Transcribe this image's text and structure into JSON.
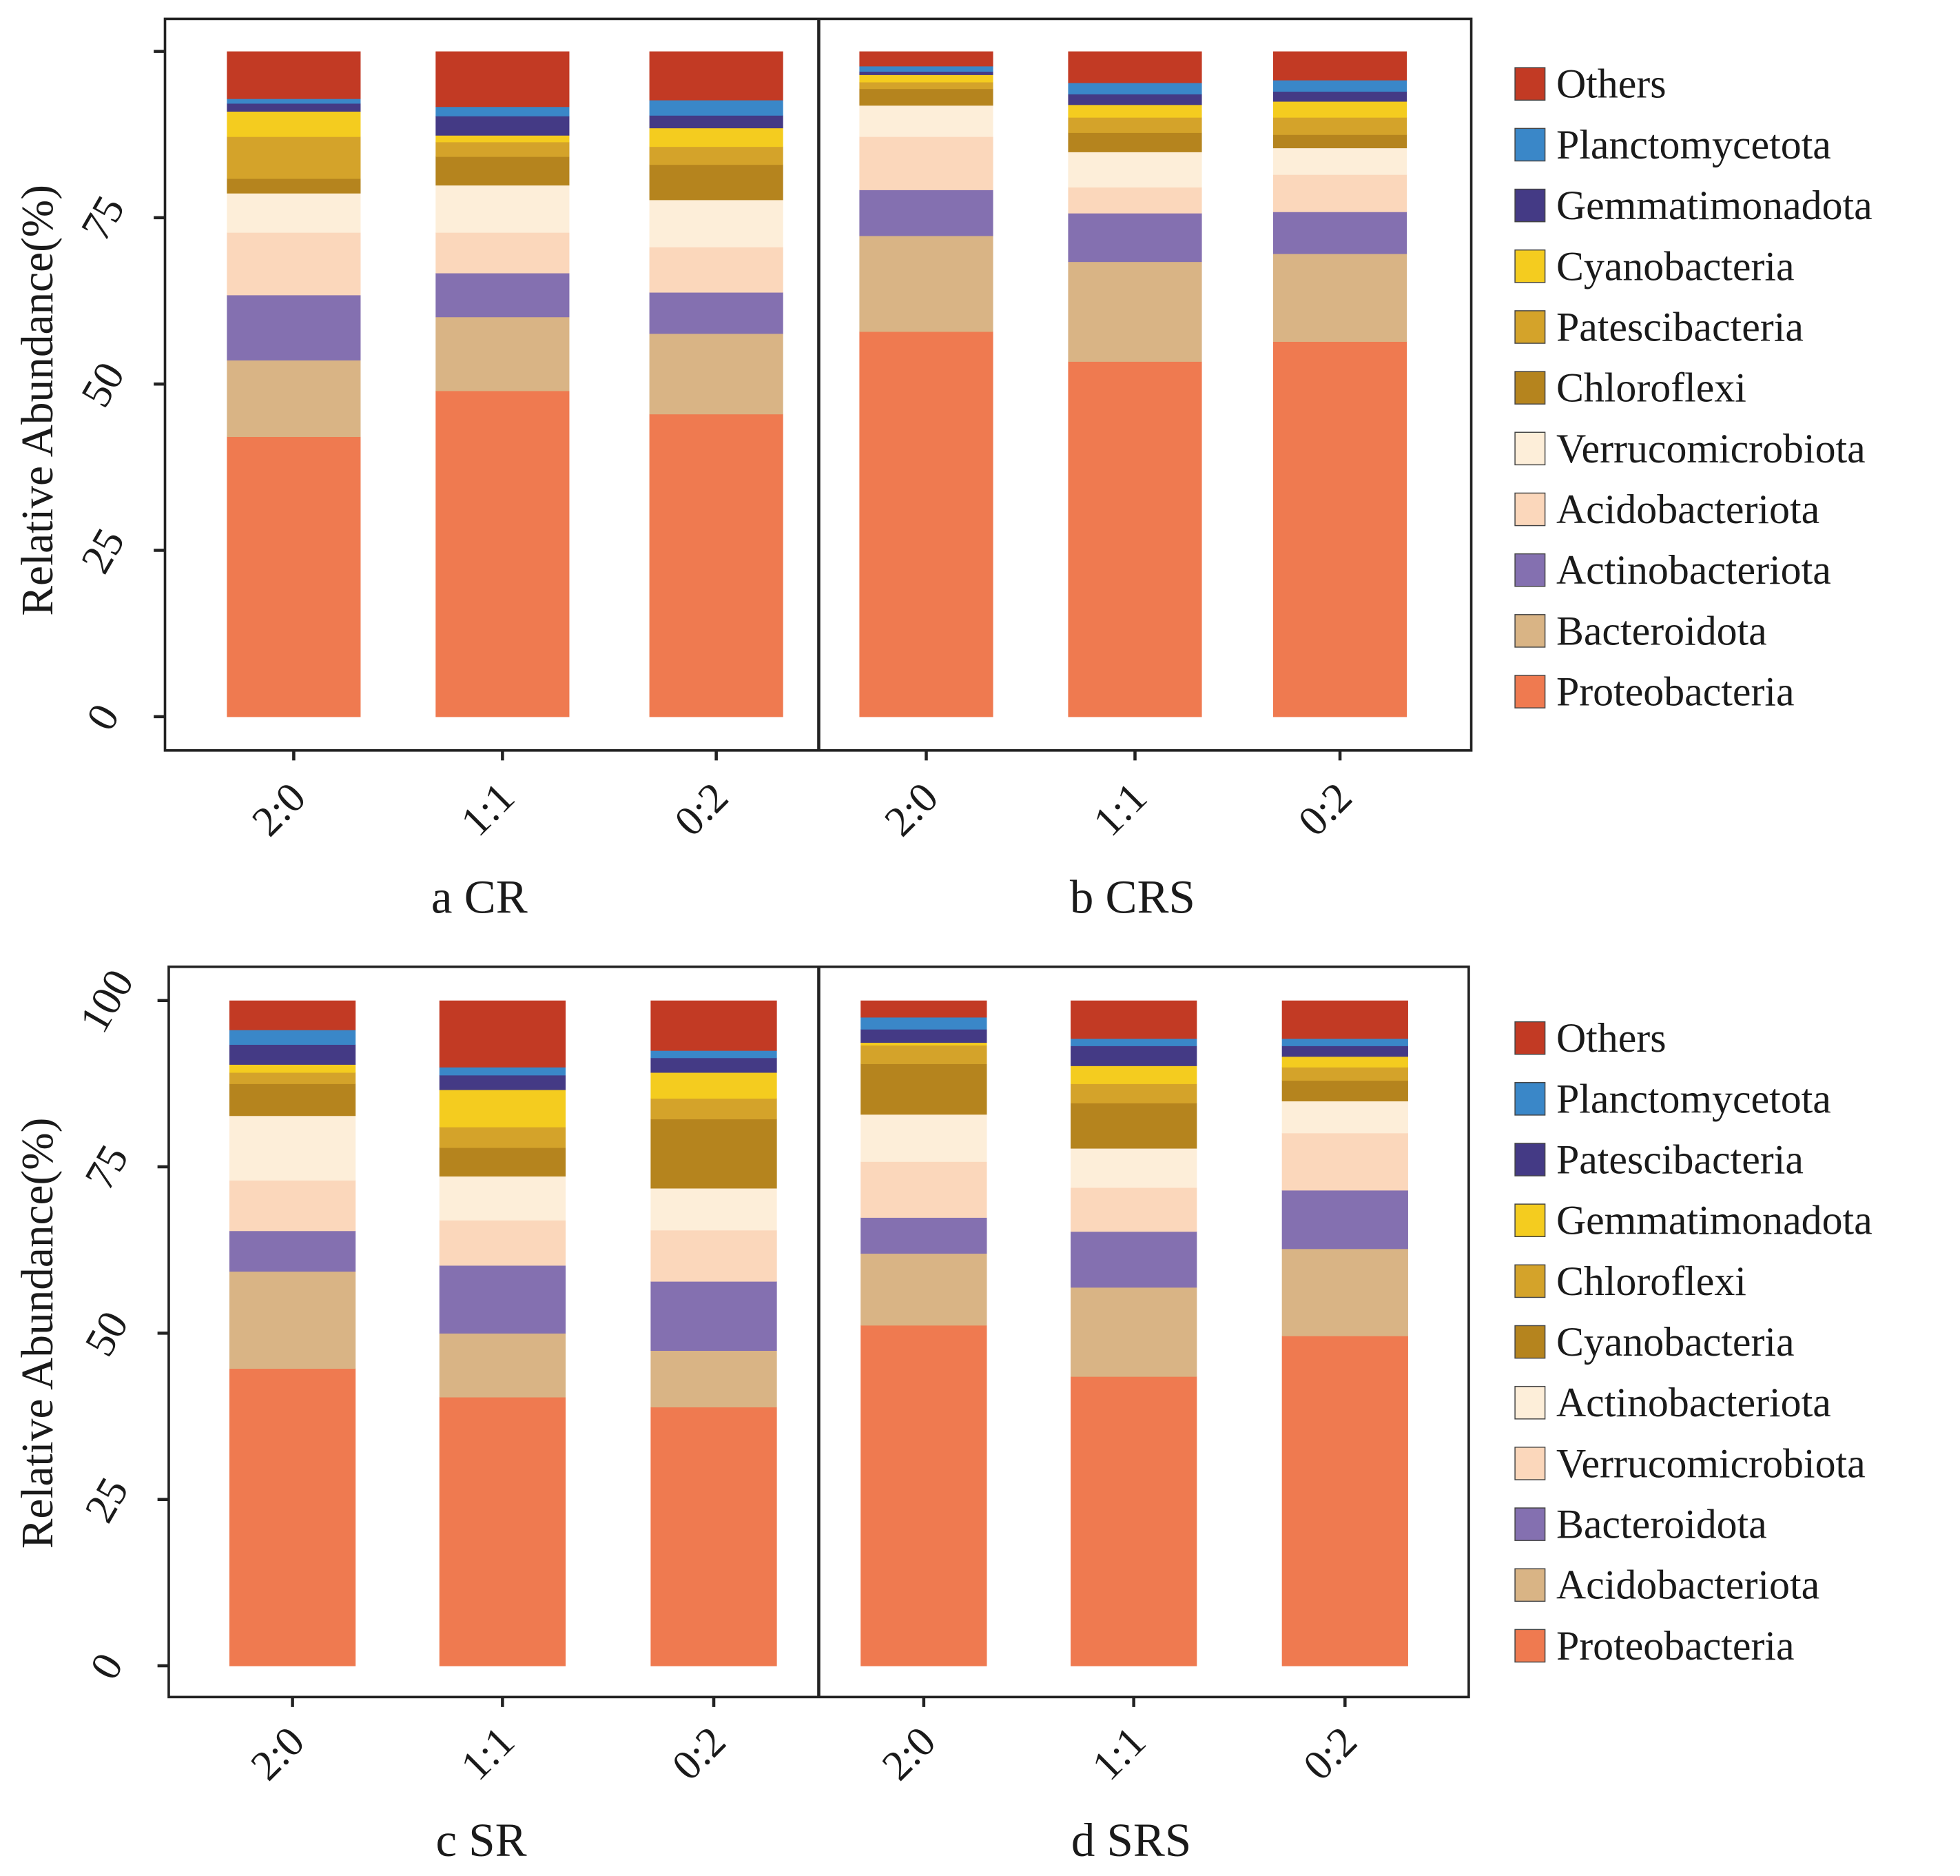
{
  "chart_data": [
    {
      "type": "bar",
      "stacked": true,
      "panel": "a CR",
      "ylabel": "Relative Abundance(%)",
      "ylim": [
        0,
        100
      ],
      "yticks": [
        "0",
        "25",
        "50",
        "75",
        ""
      ],
      "ytick_values": [
        0,
        25,
        50,
        75,
        100
      ],
      "categories": [
        "2:0",
        "1:1",
        "0:2"
      ],
      "grid": false,
      "legend_position": "right",
      "series": [
        {
          "name": "Proteobacteria",
          "color": "#ef7a50",
          "values": [
            42.1,
            49.0,
            45.5
          ]
        },
        {
          "name": "Bacteroidota",
          "color": "#d9b485",
          "values": [
            11.5,
            11.1,
            12.1
          ]
        },
        {
          "name": "Actinobacteriota",
          "color": "#8470b0",
          "values": [
            9.8,
            6.6,
            6.2
          ]
        },
        {
          "name": "Acidobacteriota",
          "color": "#fbd7bb",
          "values": [
            9.4,
            6.1,
            6.8
          ]
        },
        {
          "name": "Verrucomicrobiota",
          "color": "#fdeed9",
          "values": [
            5.9,
            7.1,
            7.1
          ]
        },
        {
          "name": "Chloroflexi",
          "color": "#b5841e",
          "values": [
            2.2,
            4.3,
            5.3
          ]
        },
        {
          "name": "Patescibacteria",
          "color": "#d4a32a",
          "values": [
            6.3,
            2.2,
            2.7
          ]
        },
        {
          "name": "Cyanobacteria",
          "color": "#f4cc1f",
          "values": [
            3.8,
            1.0,
            2.8
          ]
        },
        {
          "name": "Gemmatimonadota",
          "color": "#443a85",
          "values": [
            1.2,
            2.9,
            1.9
          ]
        },
        {
          "name": "Planctomycetota",
          "color": "#3a87c8",
          "values": [
            0.7,
            1.4,
            2.3
          ]
        },
        {
          "name": "Others",
          "color": "#c23a24",
          "values": [
            7.1,
            8.3,
            7.3
          ]
        }
      ]
    },
    {
      "type": "bar",
      "stacked": true,
      "panel": "b CRS",
      "ylim": [
        0,
        100
      ],
      "categories": [
        "2:0",
        "1:1",
        "0:2"
      ],
      "series": [
        {
          "name": "Proteobacteria",
          "color": "#ef7a50",
          "values": [
            57.9,
            53.4,
            56.4
          ]
        },
        {
          "name": "Bacteroidota",
          "color": "#d9b485",
          "values": [
            14.4,
            15.0,
            13.2
          ]
        },
        {
          "name": "Actinobacteriota",
          "color": "#8470b0",
          "values": [
            6.9,
            7.3,
            6.3
          ]
        },
        {
          "name": "Acidobacteriota",
          "color": "#fbd7bb",
          "values": [
            8.0,
            3.9,
            5.6
          ]
        },
        {
          "name": "Verrucomicrobiota",
          "color": "#fdeed9",
          "values": [
            4.7,
            5.3,
            4.0
          ]
        },
        {
          "name": "Chloroflexi",
          "color": "#b5841e",
          "values": [
            2.5,
            2.9,
            2.0
          ]
        },
        {
          "name": "Patescibacteria",
          "color": "#d4a32a",
          "values": [
            1.0,
            2.3,
            2.6
          ]
        },
        {
          "name": "Cyanobacteria",
          "color": "#f4cc1f",
          "values": [
            1.1,
            1.9,
            2.4
          ]
        },
        {
          "name": "Gemmatimonadota",
          "color": "#443a85",
          "values": [
            0.5,
            1.6,
            1.5
          ]
        },
        {
          "name": "Planctomycetota",
          "color": "#3a87c8",
          "values": [
            0.8,
            1.7,
            1.7
          ]
        },
        {
          "name": "Others",
          "color": "#c23a24",
          "values": [
            2.2,
            4.7,
            4.3
          ]
        }
      ]
    },
    {
      "type": "bar",
      "stacked": true,
      "panel": "c SR",
      "ylabel": "Relative Abundance(%)",
      "ylim": [
        0,
        100
      ],
      "yticks": [
        "0",
        "25",
        "50",
        "75",
        "100"
      ],
      "ytick_values": [
        0,
        25,
        50,
        75,
        100
      ],
      "categories": [
        "2:0",
        "1:1",
        "0:2"
      ],
      "grid": false,
      "legend_position": "right",
      "series": [
        {
          "name": "Proteobacteria",
          "color": "#ef7a50",
          "values": [
            44.7,
            40.4,
            38.9
          ]
        },
        {
          "name": "Acidobacteriota",
          "color": "#d9b485",
          "values": [
            14.6,
            9.6,
            8.5
          ]
        },
        {
          "name": "Bacteroidota",
          "color": "#8470b0",
          "values": [
            6.1,
            10.2,
            10.4
          ]
        },
        {
          "name": "Verrucomicrobiota",
          "color": "#fbd7bb",
          "values": [
            7.6,
            6.8,
            7.7
          ]
        },
        {
          "name": "Actinobacteriota",
          "color": "#fdeed9",
          "values": [
            9.7,
            6.6,
            6.3
          ]
        },
        {
          "name": "Cyanobacteria",
          "color": "#b5841e",
          "values": [
            4.8,
            4.3,
            10.4
          ]
        },
        {
          "name": "Chloroflexi",
          "color": "#d4a32a",
          "values": [
            1.7,
            3.1,
            3.1
          ]
        },
        {
          "name": "Gemmatimonadota",
          "color": "#f4cc1f",
          "values": [
            1.2,
            5.6,
            3.9
          ]
        },
        {
          "name": "Patescibacteria",
          "color": "#443a85",
          "values": [
            3.0,
            2.2,
            2.2
          ]
        },
        {
          "name": "Planctomycetota",
          "color": "#3a87c8",
          "values": [
            2.2,
            1.2,
            1.1
          ]
        },
        {
          "name": "Others",
          "color": "#c23a24",
          "values": [
            4.4,
            10.0,
            7.5
          ]
        }
      ]
    },
    {
      "type": "bar",
      "stacked": true,
      "panel": "d SRS",
      "ylim": [
        0,
        100
      ],
      "categories": [
        "2:0",
        "1:1",
        "0:2"
      ],
      "series": [
        {
          "name": "Proteobacteria",
          "color": "#ef7a50",
          "values": [
            51.2,
            43.5,
            49.6
          ]
        },
        {
          "name": "Acidobacteriota",
          "color": "#d9b485",
          "values": [
            10.8,
            13.4,
            13.1
          ]
        },
        {
          "name": "Bacteroidota",
          "color": "#8470b0",
          "values": [
            5.4,
            8.4,
            8.8
          ]
        },
        {
          "name": "Verrucomicrobiota",
          "color": "#fbd7bb",
          "values": [
            8.4,
            6.6,
            8.6
          ]
        },
        {
          "name": "Actinobacteriota",
          "color": "#fdeed9",
          "values": [
            7.1,
            5.9,
            4.8
          ]
        },
        {
          "name": "Cyanobacteria",
          "color": "#b5841e",
          "values": [
            7.6,
            6.8,
            3.1
          ]
        },
        {
          "name": "Chloroflexi",
          "color": "#d4a32a",
          "values": [
            2.8,
            2.9,
            2.0
          ]
        },
        {
          "name": "Gemmatimonadota",
          "color": "#f4cc1f",
          "values": [
            0.4,
            2.7,
            1.6
          ]
        },
        {
          "name": "Patescibacteria",
          "color": "#443a85",
          "values": [
            2.0,
            3.0,
            1.6
          ]
        },
        {
          "name": "Planctomycetota",
          "color": "#3a87c8",
          "values": [
            1.8,
            1.1,
            1.1
          ]
        },
        {
          "name": "Others",
          "color": "#c23a24",
          "values": [
            2.5,
            5.7,
            5.7
          ]
        }
      ]
    }
  ]
}
